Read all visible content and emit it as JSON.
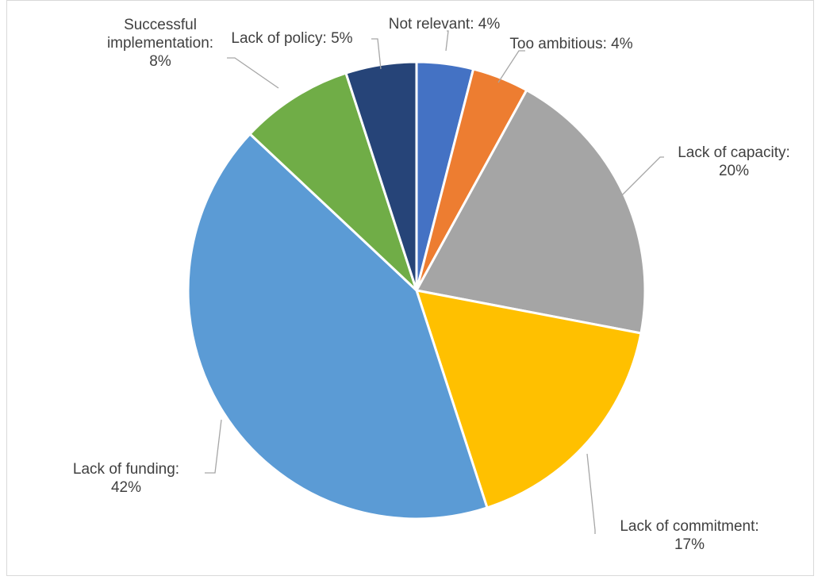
{
  "chart_data": {
    "type": "pie",
    "title": "",
    "start_angle_deg": 0,
    "direction": "clockwise",
    "slice_border_color": "#ffffff",
    "label_color": "#404040",
    "leader_color": "#a6a6a6",
    "slices": [
      {
        "label": "Not relevant",
        "value": 4,
        "display": "4%",
        "color": "#4472c4",
        "label_lines": [
          "Not relevant: 4%"
        ]
      },
      {
        "label": "Too ambitious",
        "value": 4,
        "display": "4%",
        "color": "#ed7d31",
        "label_lines": [
          "Too ambitious:  4%"
        ]
      },
      {
        "label": "Lack of capacity",
        "value": 20,
        "display": "20%",
        "color": "#a5a5a5",
        "label_lines": [
          "Lack of capacity:",
          "20%"
        ]
      },
      {
        "label": "Lack of commitment",
        "value": 17,
        "display": "17%",
        "color": "#ffc000",
        "label_lines": [
          "Lack of commitment:",
          "17%"
        ]
      },
      {
        "label": "Lack of funding",
        "value": 42,
        "display": "42%",
        "color": "#5b9bd5",
        "label_lines": [
          "Lack of funding:",
          "42%"
        ]
      },
      {
        "label": "Successful implementation",
        "value": 8,
        "display": "8%",
        "color": "#70ad47",
        "label_lines": [
          "Successful",
          "implementation:",
          "8%"
        ]
      },
      {
        "label": "Lack of policy",
        "value": 5,
        "display": "5%",
        "color": "#264478",
        "label_lines": [
          "Lack of policy:  5%"
        ]
      }
    ]
  }
}
